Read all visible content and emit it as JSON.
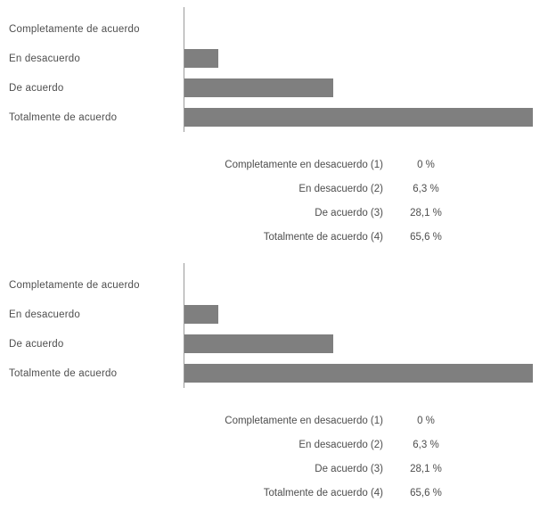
{
  "colors": {
    "bar": "#7f7f7f",
    "axis": "#9a9a9a",
    "text": "#4e4e4e"
  },
  "chart_data": [
    {
      "type": "bar",
      "orientation": "horizontal",
      "title": "",
      "categories": [
        "Completamente de acuerdo",
        "En desacuerdo",
        "De acuerdo",
        "Totalmente de acuerdo"
      ],
      "values": [
        0,
        6.3,
        28.1,
        65.6
      ],
      "xlim": [
        0,
        70
      ],
      "unit": "%",
      "grid": false,
      "legend_rows": [
        {
          "label": "Completamente en desacuerdo (1)",
          "value": "0 %"
        },
        {
          "label": "En desacuerdo (2)",
          "value": "6,3 %"
        },
        {
          "label": "De acuerdo (3)",
          "value": "28,1 %"
        },
        {
          "label": "Totalmente de acuerdo (4)",
          "value": "65,6 %"
        }
      ]
    },
    {
      "type": "bar",
      "orientation": "horizontal",
      "title": "",
      "categories": [
        "Completamente de acuerdo",
        "En desacuerdo",
        "De acuerdo",
        "Totalmente de acuerdo"
      ],
      "values": [
        0,
        6.3,
        28.1,
        65.6
      ],
      "xlim": [
        0,
        70
      ],
      "unit": "%",
      "grid": false,
      "legend_rows": [
        {
          "label": "Completamente en desacuerdo (1)",
          "value": "0 %"
        },
        {
          "label": "En desacuerdo (2)",
          "value": "6,3 %"
        },
        {
          "label": "De acuerdo (3)",
          "value": "28,1 %"
        },
        {
          "label": "Totalmente de acuerdo (4)",
          "value": "65,6 %"
        }
      ]
    }
  ]
}
